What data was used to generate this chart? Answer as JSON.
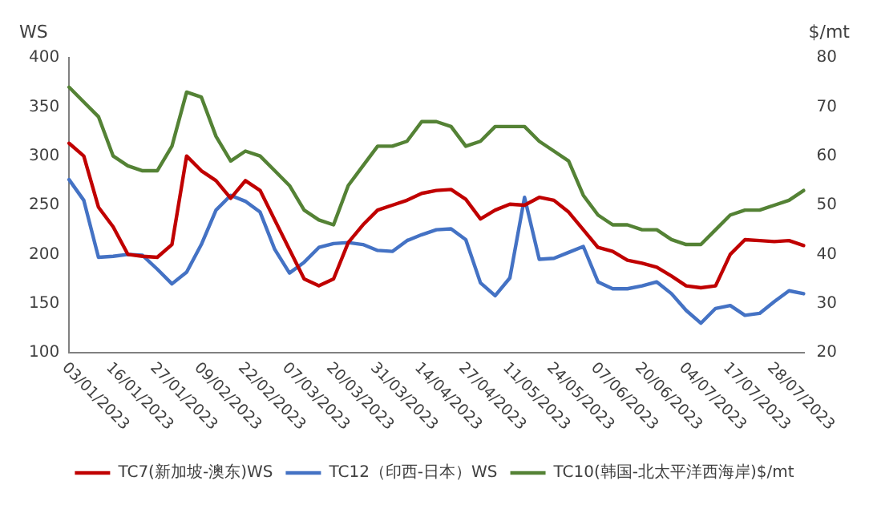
{
  "chart_data": {
    "type": "line",
    "ylabel": "WS",
    "y2label": "$/mt",
    "categories": [
      "03/01/2023",
      null,
      null,
      "16/01/2023",
      null,
      null,
      "27/01/2023",
      null,
      null,
      "09/02/2023",
      null,
      null,
      "22/02/2023",
      null,
      null,
      "07/03/2023",
      null,
      null,
      "20/03/2023",
      null,
      null,
      "31/03/2023",
      null,
      null,
      "14/04/2023",
      null,
      null,
      "27/04/2023",
      null,
      null,
      "11/05/2023",
      null,
      null,
      "24/05/2023",
      null,
      null,
      "07/06/2023",
      null,
      null,
      "20/06/2023",
      null,
      null,
      "04/07/2023",
      null,
      null,
      "17/07/2023",
      null,
      null,
      "28/07/2023",
      null,
      null
    ],
    "series": [
      {
        "name": "TC7(新加坡-澳东)WS",
        "color": "#c00000",
        "values": [
          313,
          300,
          248,
          228,
          200,
          198,
          197,
          210,
          300,
          285,
          275,
          257,
          275,
          265,
          235,
          205,
          175,
          168,
          175,
          212,
          230,
          245,
          250,
          255,
          262,
          265,
          266,
          256,
          236,
          245,
          251,
          250,
          258,
          255,
          243,
          225,
          207,
          203,
          194,
          191,
          187,
          178,
          168,
          166,
          168,
          200,
          215,
          214,
          213,
          214,
          209
        ]
      },
      {
        "name": "TC12（印西-日本）WS",
        "color": "#4472c4",
        "values": [
          276,
          255,
          197,
          198,
          200,
          199,
          185,
          170,
          182,
          210,
          245,
          260,
          254,
          243,
          205,
          181,
          192,
          207,
          211,
          212,
          210,
          204,
          203,
          214,
          220,
          225,
          226,
          215,
          171,
          158,
          176,
          258,
          195,
          196,
          202,
          208,
          172,
          165,
          165,
          168,
          172,
          160,
          143,
          130,
          145,
          148,
          138,
          140,
          152,
          163,
          160
        ]
      },
      {
        "name": "TC10(韩国-北太平洋西海岸)$/mt",
        "color": "#548235",
        "axis": "y2",
        "values": [
          74,
          71,
          68,
          60,
          58,
          57,
          57,
          62,
          73,
          72,
          64,
          59,
          61,
          60,
          57,
          54,
          49,
          47,
          46,
          54,
          58,
          62,
          62,
          63,
          67,
          67,
          66,
          62,
          63,
          66,
          66,
          66,
          63,
          61,
          59,
          52,
          48,
          46,
          46,
          45,
          45,
          43,
          42,
          42,
          45,
          48,
          49,
          49,
          50,
          51,
          53
        ]
      }
    ],
    "ylim": [
      100,
      400
    ],
    "yticks": [
      100,
      150,
      200,
      250,
      300,
      350,
      400
    ],
    "y2lim": [
      20,
      80
    ],
    "y2ticks": [
      20,
      30,
      40,
      50,
      60,
      70,
      80
    ],
    "grid": false,
    "legend": "bottom",
    "marker": "none",
    "line_style": "solid"
  }
}
